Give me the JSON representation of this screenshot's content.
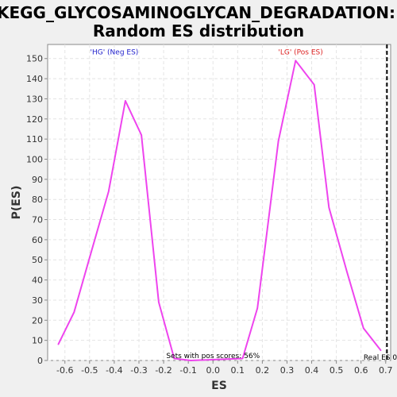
{
  "chart_data": {
    "type": "line",
    "title_line1": "KEGG_GLYCOSAMINOGLYCAN_DEGRADATION:",
    "title_line2": "Random ES distribution",
    "xlabel": "ES",
    "ylabel": "P(ES)",
    "xlim": [
      -0.67,
      0.72
    ],
    "ylim": [
      0,
      157
    ],
    "x_ticks": [
      "-0.6",
      "-0.5",
      "-0.4",
      "-0.3",
      "-0.2",
      "-0.1",
      "0.0",
      "0.1",
      "0.2",
      "0.3",
      "0.4",
      "0.5",
      "0.6",
      "0.7"
    ],
    "y_ticks": [
      "0",
      "10",
      "20",
      "30",
      "40",
      "50",
      "60",
      "70",
      "80",
      "90",
      "100",
      "110",
      "120",
      "130",
      "140",
      "150"
    ],
    "grid": true,
    "series": [
      {
        "color": "#ee44ee",
        "points": [
          {
            "x": -0.627,
            "y": 8
          },
          {
            "x": -0.563,
            "y": 24
          },
          {
            "x": -0.5,
            "y": 51
          },
          {
            "x": -0.423,
            "y": 84
          },
          {
            "x": -0.355,
            "y": 129
          },
          {
            "x": -0.29,
            "y": 112
          },
          {
            "x": -0.22,
            "y": 29
          },
          {
            "x": -0.157,
            "y": 1
          },
          {
            "x": -0.09,
            "y": 0
          },
          {
            "x": 0.12,
            "y": 1
          },
          {
            "x": 0.18,
            "y": 26
          },
          {
            "x": 0.265,
            "y": 109
          },
          {
            "x": 0.335,
            "y": 149
          },
          {
            "x": 0.41,
            "y": 137
          },
          {
            "x": 0.47,
            "y": 76
          },
          {
            "x": 0.543,
            "y": 44
          },
          {
            "x": 0.61,
            "y": 16
          },
          {
            "x": 0.68,
            "y": 5
          }
        ]
      }
    ],
    "real_es": 0.705,
    "annotations": {
      "neg": {
        "text": "'HG' (Neg ES)",
        "x": -0.4,
        "y": 152,
        "color": "#2222cc"
      },
      "pos": {
        "text": "'LG' (Pos ES)",
        "x": 0.355,
        "y": 152,
        "color": "#dd2222"
      },
      "pos_scores": {
        "text": "Sets with pos scores: 56%",
        "x": 0.0,
        "y": 1.2,
        "color": "#000000"
      },
      "real_es_label": {
        "text": "Real ES 0.",
        "x": 0.61,
        "y": 0.3,
        "color": "#000000"
      }
    }
  }
}
